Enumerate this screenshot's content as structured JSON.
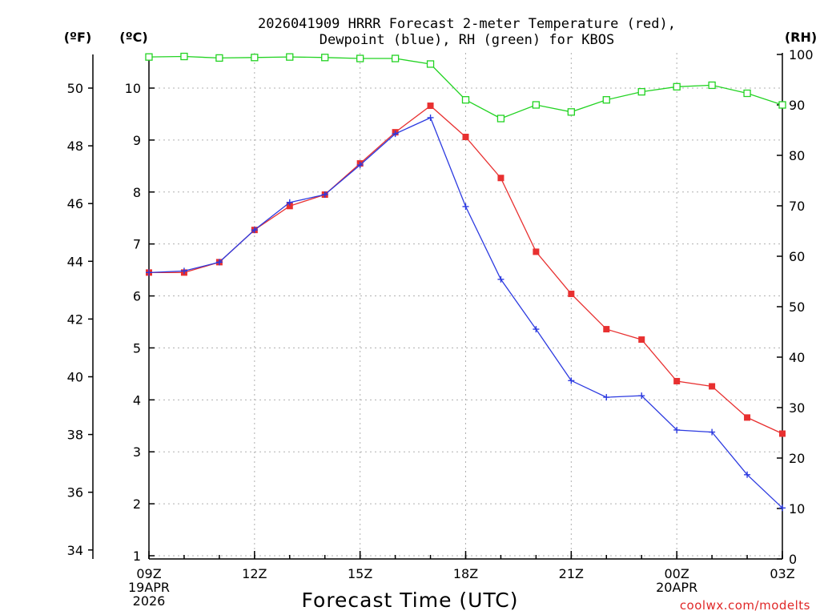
{
  "chart_data": {
    "type": "line",
    "title_line1": "2026041909 HRRR Forecast 2-meter Temperature (red),",
    "title_line2": "Dewpoint (blue), RH (green) for KBOS",
    "xlabel": "Forecast Time (UTC)",
    "credit": "coolwx.com/modelts",
    "unit_left_outer": "(ºF)",
    "unit_left_inner": "(ºC)",
    "unit_right": "(RH)",
    "x_hours": [
      0,
      1,
      2,
      3,
      4,
      5,
      6,
      7,
      8,
      9,
      10,
      11,
      12,
      13,
      14,
      15,
      16,
      17,
      18
    ],
    "x_ticks": [
      {
        "hour": 0,
        "lines": [
          "09Z",
          "19APR",
          "2026"
        ]
      },
      {
        "hour": 3,
        "lines": [
          "12Z"
        ]
      },
      {
        "hour": 6,
        "lines": [
          "15Z"
        ]
      },
      {
        "hour": 9,
        "lines": [
          "18Z"
        ]
      },
      {
        "hour": 12,
        "lines": [
          "21Z"
        ]
      },
      {
        "hour": 15,
        "lines": [
          "00Z",
          "20APR"
        ]
      },
      {
        "hour": 18,
        "lines": [
          "03Z"
        ]
      }
    ],
    "celsius_ylim": [
      1,
      10.9
    ],
    "celsius_ticks": [
      1,
      2,
      3,
      4,
      5,
      6,
      7,
      8,
      9,
      10
    ],
    "fahrenheit_ticks": [
      34,
      36,
      38,
      40,
      42,
      44,
      46,
      48,
      50
    ],
    "rh_ylim": [
      0,
      100
    ],
    "rh_ticks": [
      0,
      10,
      20,
      30,
      40,
      50,
      60,
      70,
      80,
      90,
      100
    ],
    "series": [
      {
        "name": "Temperature (red)",
        "units": "C",
        "color": "#e83030",
        "marker": "filled-square",
        "values": [
          6.45,
          6.45,
          6.65,
          7.27,
          7.73,
          7.95,
          8.55,
          9.15,
          9.66,
          9.06,
          8.27,
          6.85,
          6.04,
          5.36,
          5.16,
          4.36,
          4.26,
          3.66,
          3.35
        ]
      },
      {
        "name": "Dewpoint (blue)",
        "units": "C",
        "color": "#2c3ae0",
        "marker": "plus",
        "values": [
          6.45,
          6.48,
          6.65,
          7.27,
          7.8,
          7.95,
          8.52,
          9.12,
          9.43,
          7.72,
          6.32,
          5.36,
          4.37,
          4.05,
          4.08,
          3.42,
          3.38,
          2.56,
          1.92
        ]
      },
      {
        "name": "RH (green)",
        "units": "%",
        "color": "#22d322",
        "marker": "open-square",
        "values": [
          99.5,
          99.6,
          99.3,
          99.4,
          99.5,
          99.4,
          99.2,
          99.2,
          98.1,
          91.0,
          87.3,
          90.0,
          88.6,
          91.0,
          92.6,
          93.6,
          93.9,
          92.3,
          90.0
        ]
      }
    ]
  }
}
